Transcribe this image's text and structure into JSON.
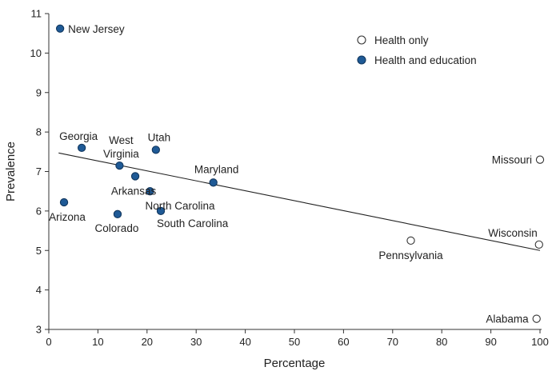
{
  "chart_data": {
    "type": "scatter",
    "title": "",
    "xlabel": "Percentage",
    "ylabel": "Prevalence",
    "xlim": [
      0,
      100
    ],
    "ylim": [
      3,
      11
    ],
    "xticks": [
      0,
      10,
      20,
      30,
      40,
      50,
      60,
      70,
      80,
      90,
      100
    ],
    "yticks": [
      3,
      4,
      5,
      6,
      7,
      8,
      9,
      10,
      11
    ],
    "grid": false,
    "legend_position": "top-right",
    "series": [
      {
        "name": "Health only",
        "marker": "open-circle",
        "color": "#ffffff",
        "stroke": "#333333",
        "points": [
          {
            "label": "Missouri",
            "x": 100,
            "y": 7.3
          },
          {
            "label": "Wisconsin",
            "x": 99.8,
            "y": 5.15
          },
          {
            "label": "Pennsylvania",
            "x": 73.7,
            "y": 5.25
          },
          {
            "label": "Alabama",
            "x": 99.3,
            "y": 3.27
          }
        ]
      },
      {
        "name": "Health and education",
        "marker": "filled-circle",
        "color": "#1f5a96",
        "stroke": "#12375e",
        "points": [
          {
            "label": "New Jersey",
            "x": 2.3,
            "y": 10.62
          },
          {
            "label": "Georgia",
            "x": 6.7,
            "y": 7.6
          },
          {
            "label": "West Virginia",
            "x": 14.4,
            "y": 7.15
          },
          {
            "label": "Utah",
            "x": 21.8,
            "y": 7.55
          },
          {
            "label": "Arkansas",
            "x": 17.6,
            "y": 6.88
          },
          {
            "label": "Maryland",
            "x": 33.5,
            "y": 6.72
          },
          {
            "label": "Arizona",
            "x": 3.1,
            "y": 6.22
          },
          {
            "label": "North Carolina",
            "x": 20.6,
            "y": 6.5
          },
          {
            "label": "Colorado",
            "x": 14.0,
            "y": 5.92
          },
          {
            "label": "South Carolina",
            "x": 22.8,
            "y": 6.0
          }
        ]
      }
    ],
    "trendline": {
      "x": [
        2,
        100
      ],
      "y": [
        7.47,
        5.0
      ]
    }
  }
}
